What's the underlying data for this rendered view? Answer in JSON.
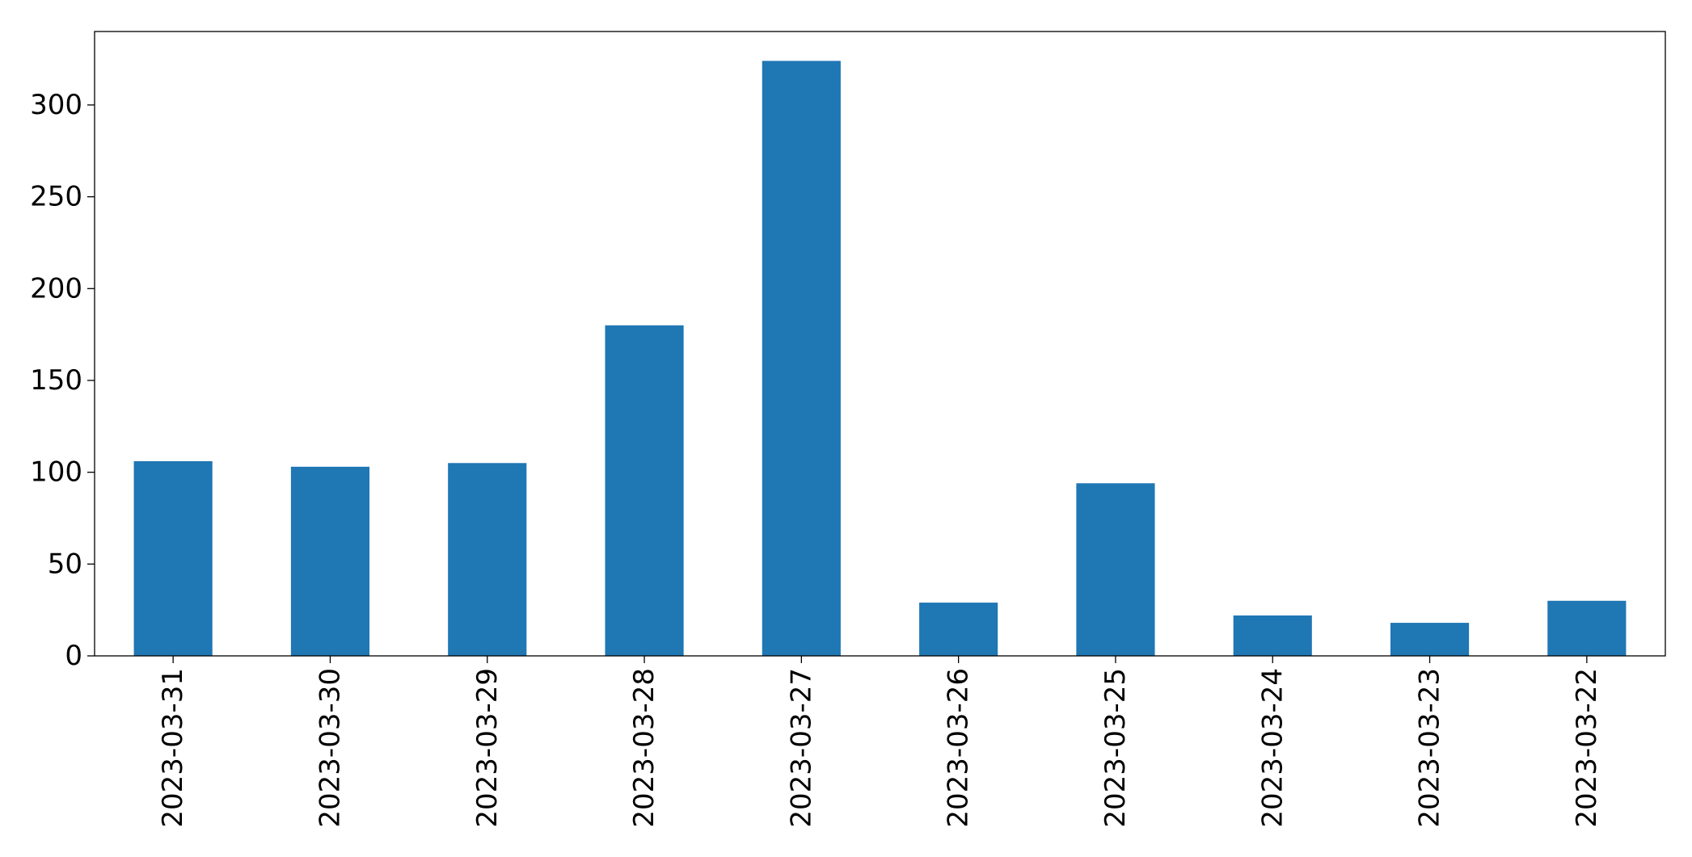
{
  "chart_data": {
    "type": "bar",
    "categories": [
      "2023-03-31",
      "2023-03-30",
      "2023-03-29",
      "2023-03-28",
      "2023-03-27",
      "2023-03-26",
      "2023-03-25",
      "2023-03-24",
      "2023-03-23",
      "2023-03-22"
    ],
    "values": [
      106,
      103,
      105,
      180,
      324,
      29,
      94,
      22,
      18,
      30
    ],
    "title": "",
    "xlabel": "",
    "ylabel": "",
    "ylim": [
      0,
      340
    ],
    "yticks": [
      0,
      50,
      100,
      150,
      200,
      250,
      300
    ],
    "bar_color": "#1f77b4",
    "grid": false,
    "x_tick_rotation": "vertical"
  }
}
